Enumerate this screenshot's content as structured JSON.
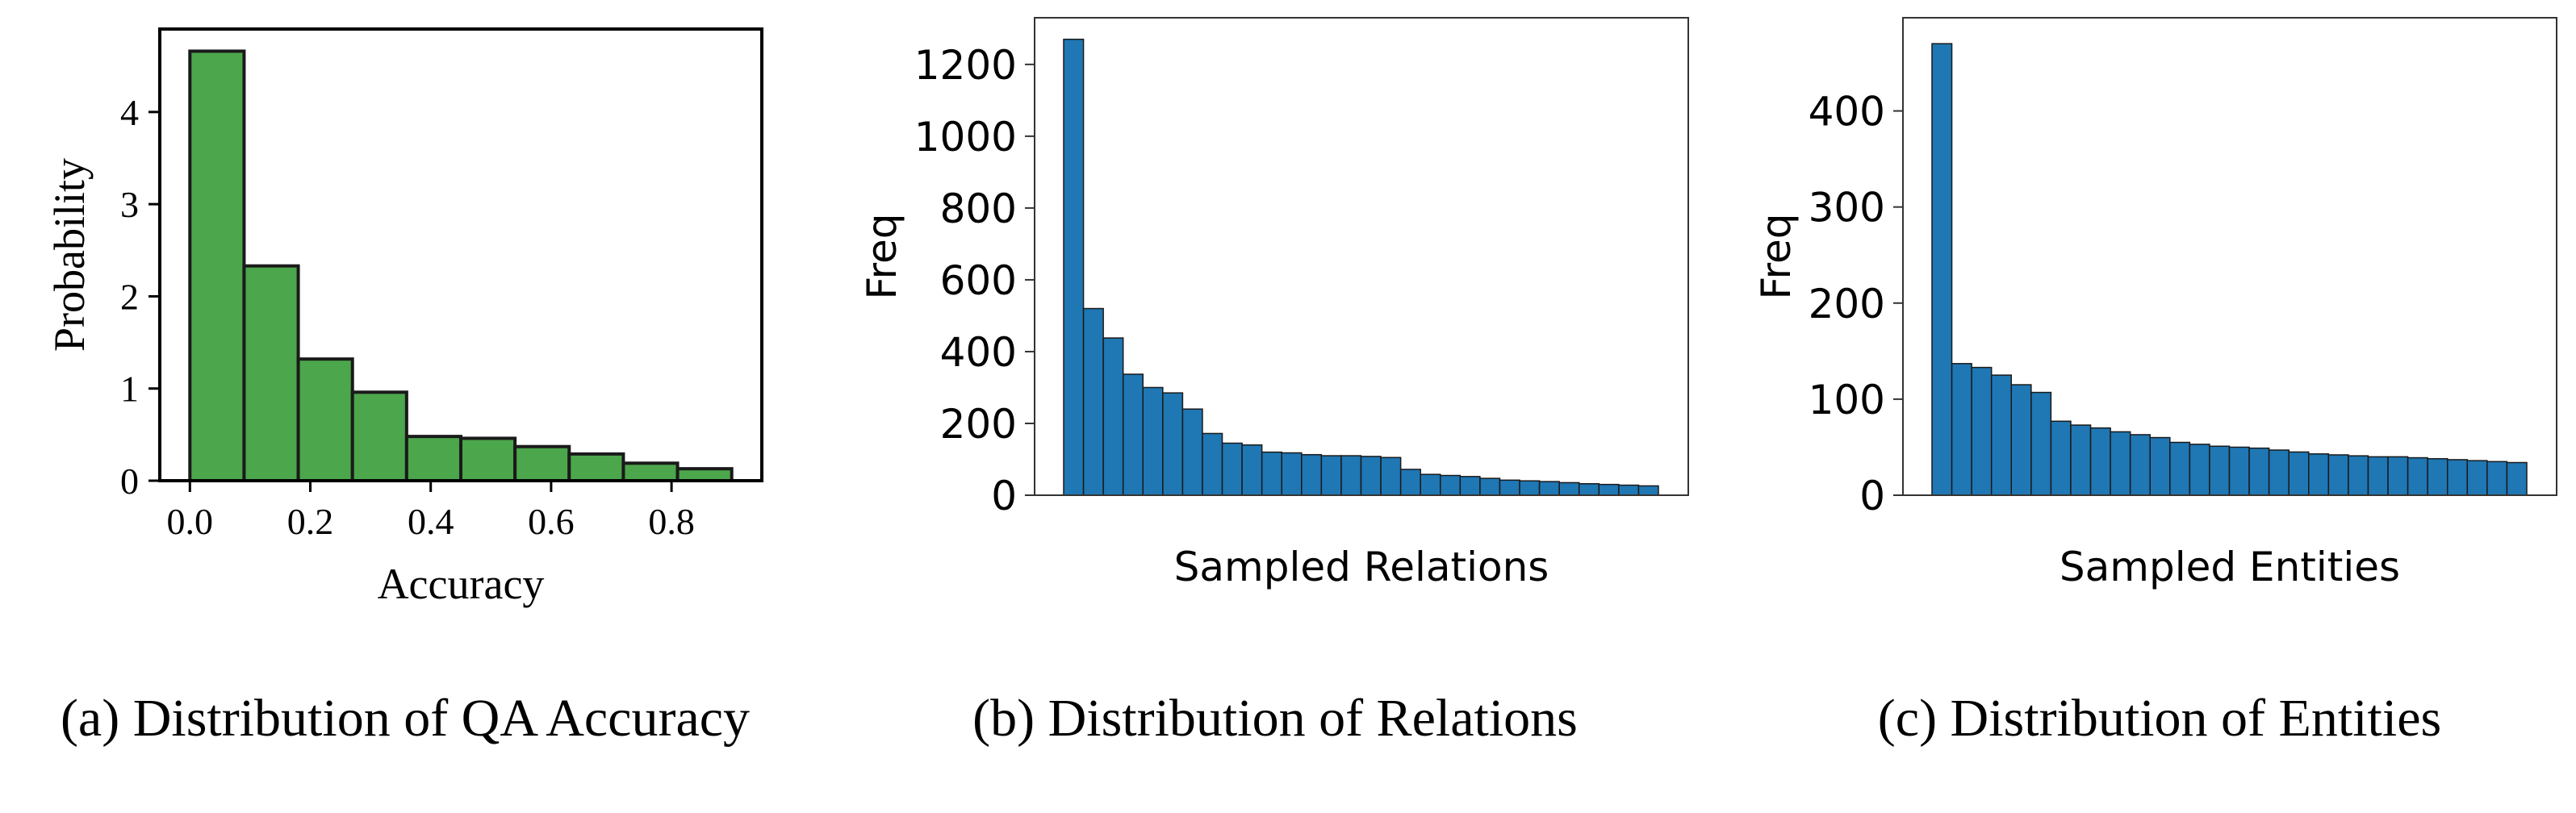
{
  "chart_data": [
    {
      "type": "bar",
      "subplot": "a",
      "caption": "(a) Distribution of QA Accuracy",
      "title": "",
      "xlabel": "Accuracy",
      "ylabel": "Probability",
      "xlim": [
        -0.05,
        0.95
      ],
      "ylim": [
        0,
        4.9
      ],
      "xticks": [
        "0.0",
        "0.2",
        "0.4",
        "0.6",
        "0.8"
      ],
      "yticks": [
        "0",
        "1",
        "2",
        "3",
        "4"
      ],
      "bin_edges": [
        0.0,
        0.09,
        0.18,
        0.27,
        0.36,
        0.45,
        0.54,
        0.63,
        0.72,
        0.81,
        0.9
      ],
      "values": [
        4.66,
        2.33,
        1.32,
        0.96,
        0.48,
        0.46,
        0.37,
        0.29,
        0.19,
        0.13
      ],
      "color": "#4ca64c",
      "edge_color": "#1a1a1a"
    },
    {
      "type": "bar",
      "subplot": "b",
      "caption": "(b) Distribution of Relations",
      "title": "",
      "xlabel": "Sampled Relations",
      "ylabel": "Freq",
      "ylim": [
        0,
        1330
      ],
      "yticks": [
        "0",
        "200",
        "400",
        "600",
        "800",
        "1000",
        "1200"
      ],
      "values": [
        1270,
        520,
        438,
        337,
        300,
        285,
        240,
        172,
        145,
        140,
        120,
        118,
        113,
        110,
        110,
        108,
        105,
        72,
        58,
        55,
        52,
        47,
        42,
        40,
        38,
        35,
        32,
        30,
        28,
        26
      ],
      "color": "#1f77b4",
      "edge_color": "#1a1a1a"
    },
    {
      "type": "bar",
      "subplot": "c",
      "caption": "(c) Distribution of Entities",
      "title": "",
      "xlabel": "Sampled Entities",
      "ylabel": "Freq",
      "ylim": [
        0,
        497
      ],
      "yticks": [
        "0",
        "100",
        "200",
        "300",
        "400"
      ],
      "values": [
        470,
        137,
        133,
        125,
        115,
        107,
        77,
        73,
        70,
        66,
        63,
        60,
        55,
        53,
        51,
        50,
        49,
        47,
        45,
        43,
        42,
        41,
        40,
        40,
        39,
        38,
        37,
        36,
        35,
        34
      ],
      "color": "#1f77b4",
      "edge_color": "#1a1a1a"
    }
  ]
}
